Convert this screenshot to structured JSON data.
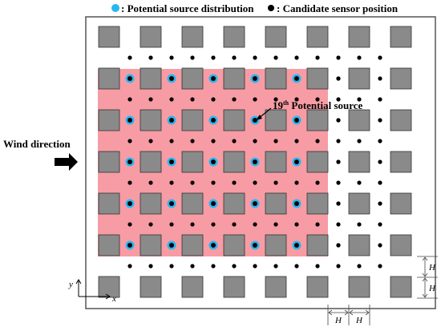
{
  "legend": {
    "source_label": ": Potential source distribution",
    "sensor_label": ": Candidate sensor position"
  },
  "annotations": {
    "wind_direction": "Wind direction",
    "potential_source_index": "19",
    "potential_source_superscript": "th",
    "potential_source_text": " Potential source",
    "spacing_label": "H",
    "x_axis": "x",
    "y_axis": "y"
  },
  "colors": {
    "building": "#8a8a8a",
    "source_zone": "#f79ca4",
    "source_ring": "#29b6f0",
    "sensor": "#000000"
  }
}
